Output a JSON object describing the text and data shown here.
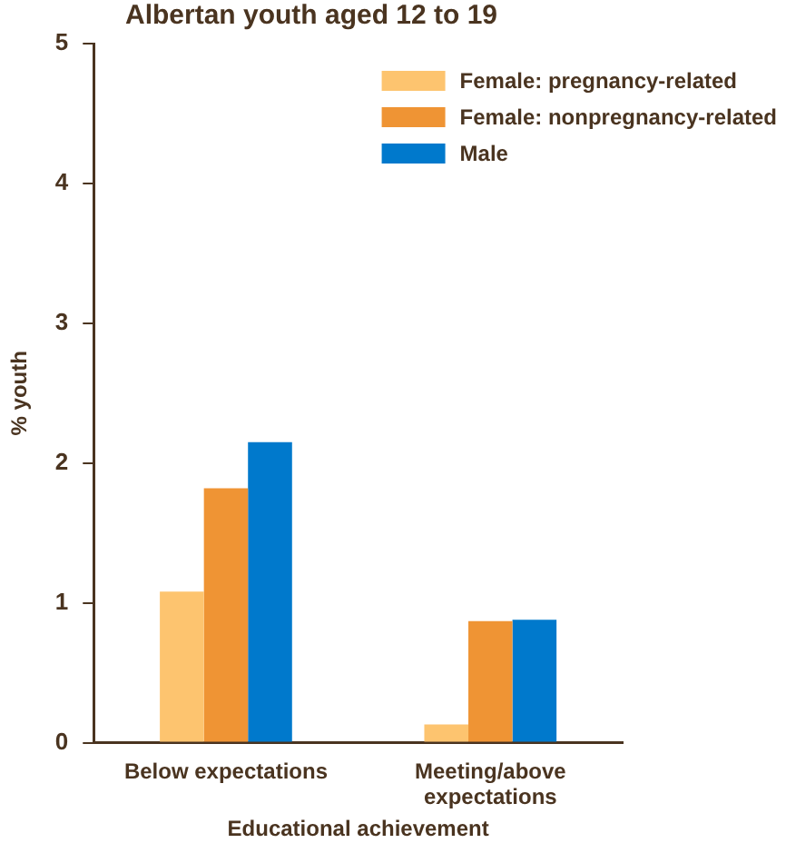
{
  "chart_data": {
    "type": "bar",
    "title": "Albertan youth aged 12 to 19",
    "xlabel": "Educational achievement",
    "ylabel": "% youth",
    "categories": [
      "Below expectations",
      "Meeting/above expectations"
    ],
    "series": [
      {
        "name": "Female: pregnancy-related",
        "color": "#fdc46f",
        "values": [
          1.08,
          0.13
        ]
      },
      {
        "name": "Female: nonpregnancy-related",
        "color": "#ef9434",
        "values": [
          1.82,
          0.87
        ]
      },
      {
        "name": "Male",
        "color": "#0079cc",
        "values": [
          2.15,
          0.88
        ]
      }
    ],
    "ylim": [
      0,
      5
    ],
    "yticks": [
      0,
      1,
      2,
      3,
      4,
      5
    ],
    "grid": false,
    "legend": "top right"
  }
}
